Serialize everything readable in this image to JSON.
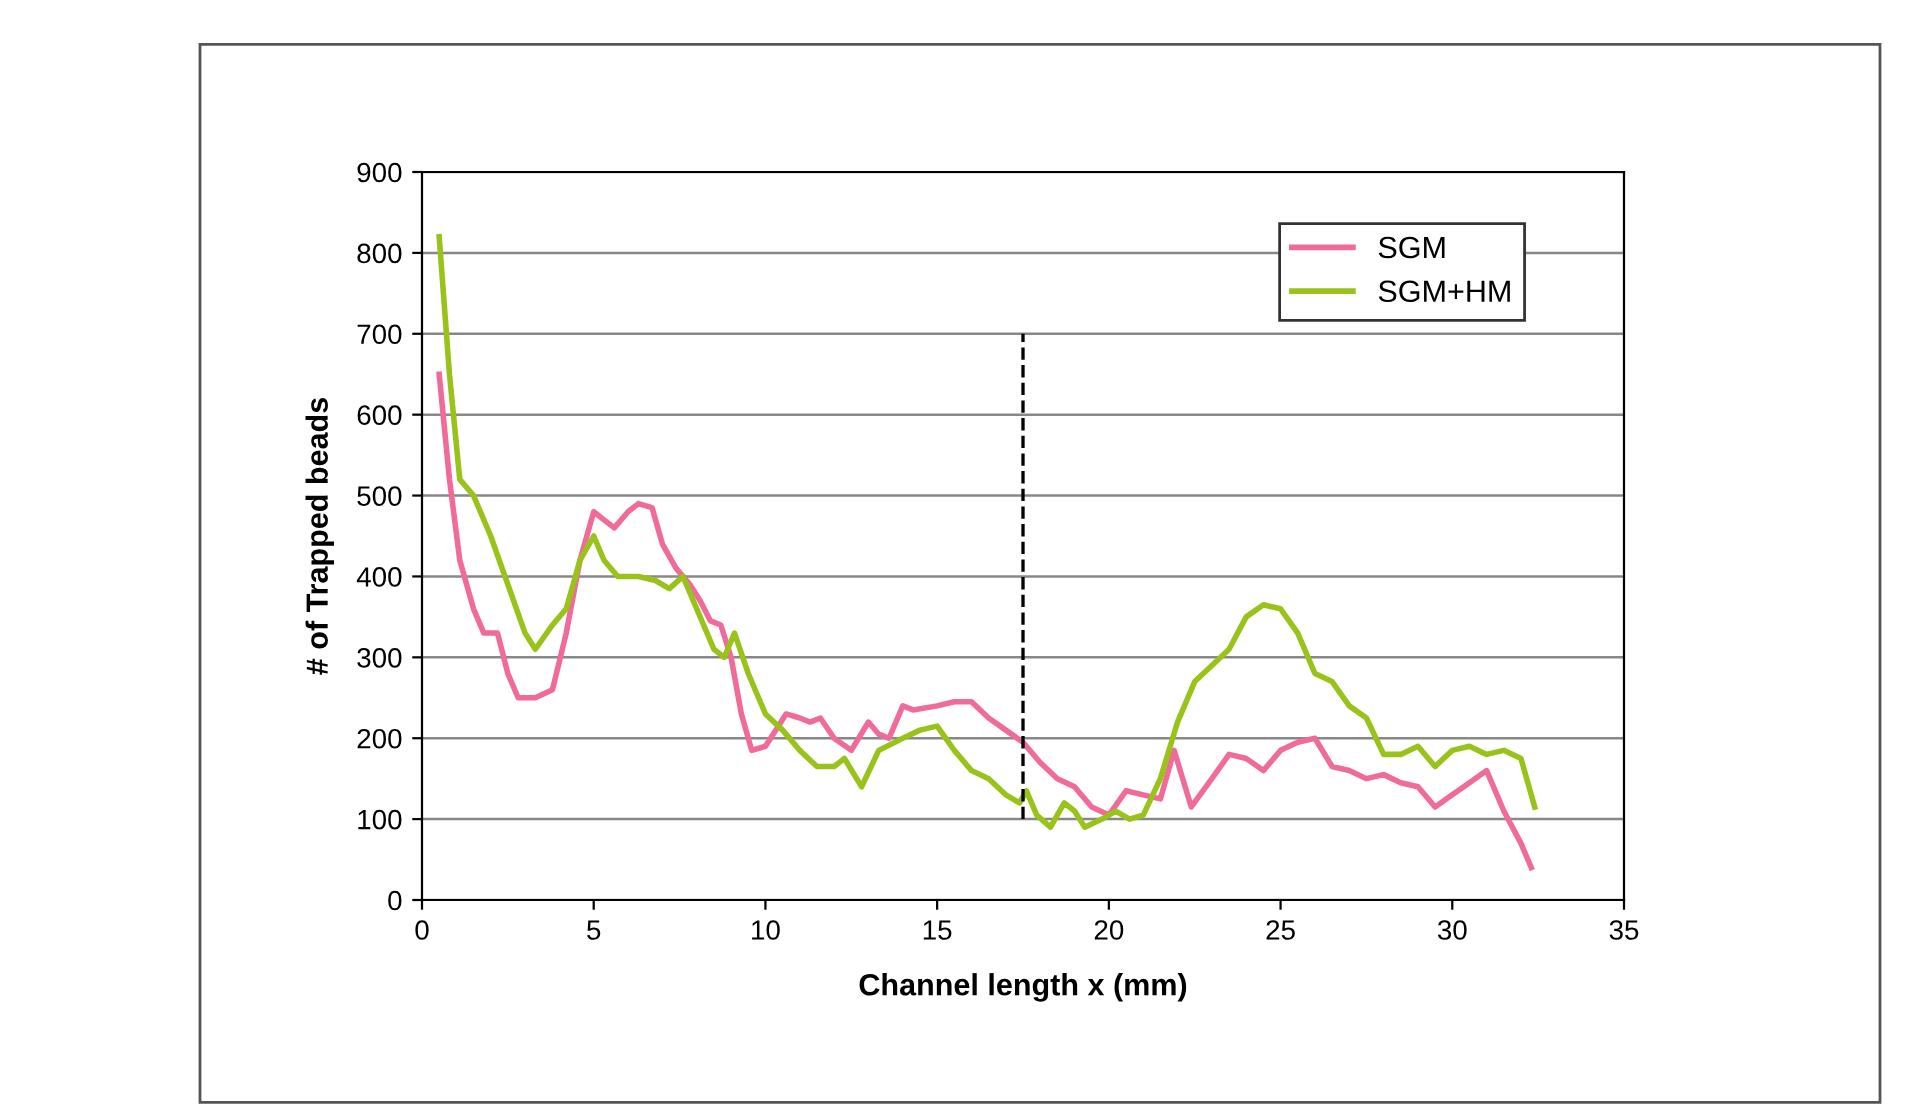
{
  "chart_data": {
    "type": "line",
    "xlabel": "Channel length x (mm)",
    "ylabel": "# of Trapped beads",
    "xlim": [
      0,
      35
    ],
    "xticks": [
      0,
      5,
      10,
      15,
      20,
      25,
      30,
      35
    ],
    "ylim": [
      0,
      900
    ],
    "yticks": [
      0,
      100,
      200,
      300,
      400,
      500,
      600,
      700,
      800,
      900
    ],
    "grid": "y",
    "legend": "top right",
    "marker": "none",
    "line_style": "solid",
    "ref_lines": [
      {
        "axis": "x",
        "value": 17.5,
        "color": "#000000",
        "line_style": "dashed"
      }
    ],
    "series": [
      {
        "name": "SGM",
        "color": "#f06a9a",
        "x": [
          0.5,
          0.8,
          1.1,
          1.5,
          1.8,
          2.2,
          2.5,
          2.8,
          3.3,
          3.8,
          4.2,
          4.6,
          5.0,
          5.3,
          5.6,
          6.0,
          6.3,
          6.7,
          7.0,
          7.4,
          7.8,
          8.1,
          8.4,
          8.7,
          9.0,
          9.3,
          9.6,
          10.0,
          10.3,
          10.6,
          11.0,
          11.3,
          11.6,
          12.0,
          12.5,
          13.0,
          13.3,
          13.6,
          14.0,
          14.3,
          15.0,
          15.5,
          16.0,
          16.5,
          17.0,
          17.5,
          18.0,
          18.5,
          19.0,
          19.5,
          20.0,
          20.5,
          21.0,
          21.5,
          21.9,
          22.4,
          23.0,
          23.5,
          24.0,
          24.5,
          25.0,
          25.5,
          26.0,
          26.5,
          27.0,
          27.5,
          28.0,
          28.5,
          29.0,
          29.5,
          30.0,
          30.5,
          31.0,
          31.5,
          32.0,
          32.3
        ],
        "values": [
          650,
          520,
          420,
          360,
          330,
          330,
          280,
          250,
          250,
          260,
          330,
          420,
          480,
          470,
          460,
          480,
          490,
          485,
          440,
          410,
          390,
          370,
          345,
          340,
          300,
          230,
          185,
          190,
          210,
          230,
          225,
          220,
          225,
          200,
          185,
          220,
          205,
          200,
          240,
          235,
          240,
          245,
          245,
          225,
          210,
          195,
          170,
          150,
          140,
          115,
          105,
          135,
          130,
          125,
          185,
          115,
          150,
          180,
          175,
          160,
          185,
          195,
          200,
          165,
          160,
          150,
          155,
          145,
          140,
          115,
          130,
          145,
          160,
          110,
          70,
          40
        ]
      },
      {
        "name": "SGM+HM",
        "color": "#99c21a",
        "x": [
          0.5,
          0.8,
          1.1,
          1.5,
          2.0,
          2.5,
          3.0,
          3.3,
          3.8,
          4.2,
          4.6,
          5.0,
          5.3,
          5.7,
          6.3,
          6.8,
          7.2,
          7.6,
          8.0,
          8.5,
          8.8,
          9.1,
          9.5,
          10.0,
          10.5,
          11.0,
          11.5,
          12.0,
          12.3,
          12.8,
          13.3,
          14.0,
          14.5,
          15.0,
          15.5,
          16.0,
          16.5,
          17.0,
          17.4,
          17.6,
          17.9,
          18.3,
          18.7,
          19.0,
          19.3,
          19.8,
          20.2,
          20.6,
          21.0,
          21.5,
          22.0,
          22.5,
          23.0,
          23.5,
          24.0,
          24.5,
          25.0,
          25.5,
          26.0,
          26.5,
          27.0,
          27.5,
          28.0,
          28.5,
          29.0,
          29.5,
          30.0,
          30.5,
          31.0,
          31.5,
          32.0,
          32.4
        ],
        "values": [
          820,
          650,
          520,
          500,
          450,
          390,
          330,
          310,
          340,
          360,
          420,
          450,
          420,
          400,
          400,
          395,
          385,
          400,
          360,
          310,
          300,
          330,
          280,
          230,
          210,
          185,
          165,
          165,
          175,
          140,
          185,
          200,
          210,
          215,
          185,
          160,
          150,
          130,
          120,
          135,
          105,
          90,
          120,
          110,
          90,
          100,
          110,
          100,
          105,
          150,
          220,
          270,
          290,
          310,
          350,
          365,
          360,
          330,
          280,
          270,
          240,
          225,
          180,
          180,
          190,
          165,
          185,
          190,
          180,
          185,
          175,
          115
        ]
      }
    ]
  }
}
